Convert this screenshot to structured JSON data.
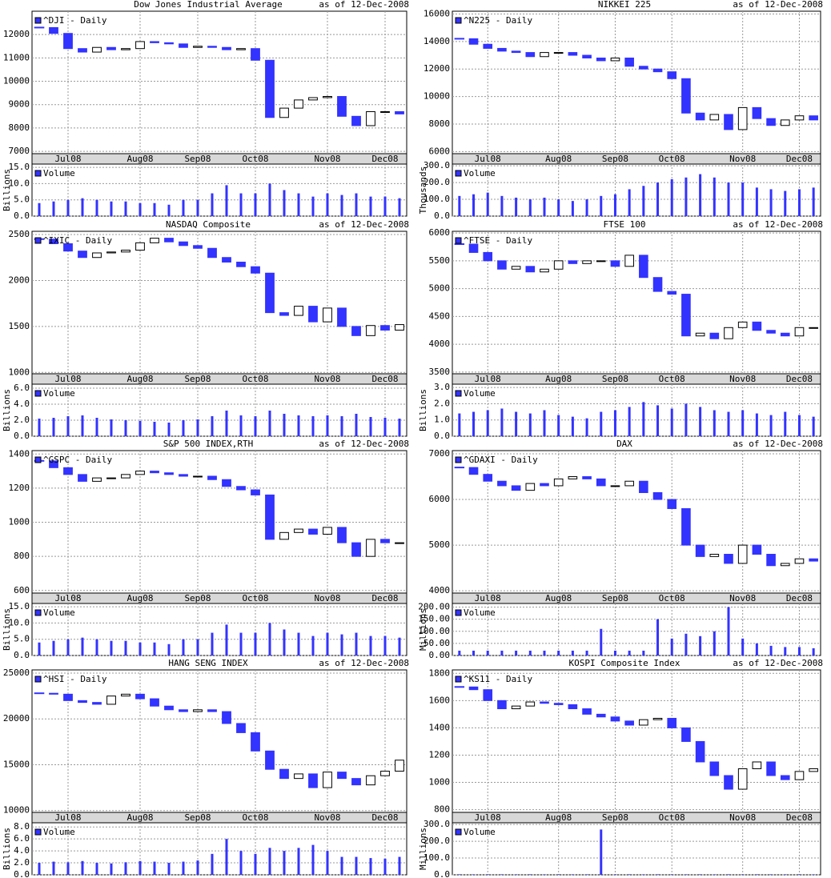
{
  "chart_data": [
    {
      "type": "candlestick",
      "title": "Dow Jones Industrial Average",
      "subtitle": "as of 12-Dec-2008",
      "categories": [
        null,
        null,
        "Jul08",
        null,
        null,
        null,
        null,
        "Aug08",
        null,
        null,
        null,
        "Sep08",
        null,
        null,
        null,
        "Oct08",
        null,
        null,
        null,
        null,
        "Nov08",
        null,
        null,
        null,
        "Dec08",
        null
      ],
      "series": [
        {
          "name": "^DJI - Daily",
          "color": "#3333ff",
          "values": [
            12300,
            12050,
            11400,
            11250,
            11450,
            11350,
            11400,
            11700,
            11650,
            11600,
            11450,
            11500,
            11450,
            11350,
            11400,
            10900,
            8450,
            8850,
            9200,
            9300,
            9350,
            8500,
            8100,
            8700,
            8700,
            8600
          ]
        }
      ],
      "ylim": [
        6900,
        13000
      ],
      "yticks": [
        7000,
        8000,
        9000,
        10000,
        11000,
        12000
      ],
      "grid": true,
      "volume": {
        "name": "Volume",
        "y_label": "Billions",
        "color": "#3333ff",
        "values": [
          4,
          4.5,
          5,
          5.5,
          5,
          4.5,
          4.5,
          4,
          4,
          3.5,
          5,
          5,
          7,
          9.5,
          7,
          7,
          10,
          8,
          7,
          6,
          7,
          6.5,
          7,
          6,
          6,
          5.5
        ],
        "ylim": [
          0,
          16
        ],
        "yticks": [
          {
            "value": 0,
            "label": "0.0"
          },
          {
            "value": 5,
            "label": "5.0"
          },
          {
            "value": 10,
            "label": "10.0"
          },
          {
            "value": 15,
            "label": "15.0"
          }
        ]
      }
    },
    {
      "type": "candlestick",
      "title": "NIKKEI 225",
      "subtitle": "as of 12-Dec-2008",
      "categories": [
        null,
        null,
        "Jul08",
        null,
        null,
        null,
        null,
        "Aug08",
        null,
        null,
        null,
        "Sep08",
        null,
        null,
        null,
        "Oct08",
        null,
        null,
        null,
        null,
        "Nov08",
        null,
        null,
        null,
        "Dec08",
        null
      ],
      "series": [
        {
          "name": "^N225 - Daily",
          "color": "#3333ff",
          "values": [
            14200,
            13800,
            13500,
            13300,
            13200,
            12900,
            13200,
            13200,
            13000,
            12800,
            12600,
            12800,
            12200,
            12000,
            11800,
            11300,
            8800,
            8300,
            8700,
            7600,
            9200,
            8400,
            7900,
            8300,
            8600,
            8300
          ]
        }
      ],
      "ylim": [
        5850,
        16200
      ],
      "yticks": [
        6000,
        8000,
        10000,
        12000,
        14000,
        16000
      ],
      "grid": true,
      "volume": {
        "name": "Volume",
        "y_label": "Thousands",
        "color": "#3333ff",
        "values": [
          120,
          130,
          140,
          120,
          110,
          100,
          110,
          100,
          90,
          100,
          120,
          130,
          160,
          180,
          200,
          220,
          230,
          250,
          230,
          200,
          200,
          170,
          160,
          150,
          160,
          170
        ],
        "ylim": [
          0,
          310
        ],
        "yticks": [
          {
            "value": 0,
            "label": "0.0"
          },
          {
            "value": 100,
            "label": "100.0"
          },
          {
            "value": 200,
            "label": "200.0"
          },
          {
            "value": 300,
            "label": "300.0"
          }
        ]
      }
    },
    {
      "type": "candlestick",
      "title": "NASDAQ Composite",
      "subtitle": "as of 12-Dec-2008",
      "categories": [
        null,
        null,
        "Jul08",
        null,
        null,
        null,
        null,
        "Aug08",
        null,
        null,
        null,
        "Sep08",
        null,
        null,
        null,
        "Oct08",
        null,
        null,
        null,
        null,
        "Nov08",
        null,
        null,
        null,
        "Dec08",
        null
      ],
      "series": [
        {
          "name": "^IXIC - Daily",
          "color": "#3333ff",
          "values": [
            2450,
            2400,
            2320,
            2250,
            2300,
            2310,
            2330,
            2410,
            2460,
            2420,
            2380,
            2350,
            2250,
            2200,
            2150,
            2080,
            1650,
            1620,
            1720,
            1550,
            1700,
            1500,
            1400,
            1510,
            1460,
            1520
          ]
        }
      ],
      "ylim": [
        985,
        2535
      ],
      "yticks": [
        1000,
        1500,
        2000,
        2500
      ],
      "grid": true,
      "volume": {
        "name": "Volume",
        "y_label": "Billions",
        "color": "#3333ff",
        "values": [
          2.2,
          2.3,
          2.5,
          2.6,
          2.3,
          2.1,
          2.0,
          1.9,
          1.8,
          1.7,
          2.0,
          2.1,
          2.5,
          3.2,
          2.6,
          2.5,
          3.2,
          2.8,
          2.6,
          2.5,
          2.6,
          2.5,
          2.8,
          2.4,
          2.3,
          2.2
        ],
        "ylim": [
          0,
          6.5
        ],
        "yticks": [
          {
            "value": 0,
            "label": "0.0"
          },
          {
            "value": 2,
            "label": "2.0"
          },
          {
            "value": 4,
            "label": "4.0"
          },
          {
            "value": 6,
            "label": "6.0"
          }
        ]
      }
    },
    {
      "type": "candlestick",
      "title": "FTSE 100",
      "subtitle": "as of 12-Dec-2008",
      "categories": [
        null,
        null,
        "Jul08",
        null,
        null,
        null,
        null,
        "Aug08",
        null,
        null,
        null,
        "Sep08",
        null,
        null,
        null,
        "Oct08",
        null,
        null,
        null,
        null,
        "Nov08",
        null,
        null,
        null,
        "Dec08",
        null
      ],
      "series": [
        {
          "name": "^FTSE - Daily",
          "color": "#3333ff",
          "values": [
            5800,
            5650,
            5500,
            5350,
            5400,
            5300,
            5350,
            5500,
            5450,
            5500,
            5500,
            5400,
            5600,
            5200,
            4950,
            4900,
            4150,
            4200,
            4100,
            4300,
            4400,
            4250,
            4200,
            4150,
            4300,
            4300
          ]
        }
      ],
      "ylim": [
        3470,
        6030
      ],
      "yticks": [
        3500,
        4000,
        4500,
        5000,
        5500,
        6000
      ],
      "grid": true,
      "volume": {
        "name": "Volume",
        "y_label": "Billions",
        "color": "#3333ff",
        "values": [
          1.4,
          1.5,
          1.6,
          1.7,
          1.5,
          1.4,
          1.6,
          1.3,
          1.2,
          1.1,
          1.5,
          1.6,
          1.8,
          2.1,
          1.9,
          1.7,
          2.0,
          1.8,
          1.6,
          1.5,
          1.6,
          1.4,
          1.3,
          1.5,
          1.3,
          1.2
        ],
        "ylim": [
          0,
          3.2
        ],
        "yticks": [
          {
            "value": 0,
            "label": "0.0"
          },
          {
            "value": 1,
            "label": "1.0"
          },
          {
            "value": 2,
            "label": "2.0"
          },
          {
            "value": 3,
            "label": "3.0"
          }
        ]
      }
    },
    {
      "type": "candlestick",
      "title": "S&P 500 INDEX,RTH",
      "subtitle": "as of 12-Dec-2008",
      "categories": [
        null,
        null,
        "Jul08",
        null,
        null,
        null,
        null,
        "Aug08",
        null,
        null,
        null,
        "Sep08",
        null,
        null,
        null,
        "Oct08",
        null,
        null,
        null,
        null,
        "Nov08",
        null,
        null,
        null,
        "Dec08",
        null
      ],
      "series": [
        {
          "name": "^GSPC - Daily",
          "color": "#3333ff",
          "values": [
            1360,
            1320,
            1280,
            1240,
            1260,
            1260,
            1280,
            1300,
            1290,
            1280,
            1270,
            1270,
            1250,
            1210,
            1190,
            1160,
            900,
            940,
            960,
            930,
            970,
            880,
            800,
            900,
            880,
            880
          ]
        }
      ],
      "ylim": [
        585,
        1420
      ],
      "yticks": [
        600,
        800,
        1000,
        1200,
        1400
      ],
      "grid": true,
      "volume": {
        "name": "Volume",
        "y_label": "Billions",
        "color": "#3333ff",
        "values": [
          4,
          4.5,
          5,
          5.5,
          5,
          4.5,
          4.5,
          4,
          4,
          3.5,
          5,
          5,
          7,
          9.5,
          7,
          7,
          10,
          8,
          7,
          6,
          7,
          6.5,
          7,
          6,
          6,
          5.5
        ],
        "ylim": [
          0,
          16
        ],
        "yticks": [
          {
            "value": 0,
            "label": "0.0"
          },
          {
            "value": 5,
            "label": "5.0"
          },
          {
            "value": 10,
            "label": "10.0"
          },
          {
            "value": 15,
            "label": "15.0"
          }
        ]
      }
    },
    {
      "type": "candlestick",
      "title": "DAX",
      "subtitle": "as of 12-Dec-2008",
      "categories": [
        null,
        null,
        "Jul08",
        null,
        null,
        null,
        null,
        "Aug08",
        null,
        null,
        null,
        "Sep08",
        null,
        null,
        null,
        "Oct08",
        null,
        null,
        null,
        null,
        "Nov08",
        null,
        null,
        null,
        "Dec08",
        null
      ],
      "series": [
        {
          "name": "^GDAXI - Daily",
          "color": "#3333ff",
          "values": [
            6700,
            6550,
            6400,
            6300,
            6200,
            6350,
            6300,
            6450,
            6500,
            6450,
            6300,
            6300,
            6400,
            6150,
            6000,
            5800,
            5000,
            4750,
            4800,
            4600,
            5000,
            4800,
            4550,
            4600,
            4700,
            4650
          ]
        }
      ],
      "ylim": [
        3950,
        7070
      ],
      "yticks": [
        4000,
        5000,
        6000,
        7000
      ],
      "grid": true,
      "volume": {
        "name": "Volume",
        "y_label": "Millions",
        "color": "#3333ff",
        "values": [
          20,
          20,
          20,
          20,
          20,
          20,
          20,
          20,
          20,
          20,
          110,
          20,
          20,
          20,
          150,
          70,
          90,
          80,
          100,
          200,
          70,
          50,
          40,
          35,
          35,
          30
        ],
        "ylim": [
          0,
          215
        ],
        "yticks": [
          {
            "value": 0,
            "label": "0.00"
          },
          {
            "value": 50,
            "label": "50.00"
          },
          {
            "value": 100,
            "label": "100.00"
          },
          {
            "value": 150,
            "label": "150.00"
          },
          {
            "value": 200,
            "label": "200.00"
          }
        ]
      }
    },
    {
      "type": "candlestick",
      "title": "HANG SENG INDEX",
      "subtitle": "as of 12-Dec-2008",
      "categories": [
        null,
        null,
        "Jul08",
        null,
        null,
        null,
        null,
        "Aug08",
        null,
        null,
        null,
        "Sep08",
        null,
        null,
        null,
        "Oct08",
        null,
        null,
        null,
        null,
        "Nov08",
        null,
        null,
        null,
        "Dec08",
        null
      ],
      "series": [
        {
          "name": "^HSI - Daily",
          "color": "#3333ff",
          "values": [
            22800,
            22700,
            22000,
            21800,
            21600,
            22500,
            22700,
            22200,
            21400,
            21000,
            20800,
            21000,
            20800,
            19500,
            18500,
            16500,
            14500,
            13500,
            14000,
            12500,
            14200,
            13500,
            12800,
            13800,
            14300,
            15500
          ]
        }
      ],
      "ylim": [
        9800,
        25350
      ],
      "yticks": [
        10000,
        15000,
        20000,
        25000
      ],
      "grid": true,
      "volume": {
        "name": "Volume",
        "y_label": "Billions",
        "color": "#3333ff",
        "values": [
          2,
          2.2,
          2.1,
          2.3,
          2.0,
          1.9,
          2.1,
          2.3,
          2.2,
          2.0,
          2.2,
          2.4,
          3.5,
          6,
          4,
          3.5,
          4.5,
          4,
          4.5,
          5,
          4,
          3,
          3,
          2.8,
          2.7,
          3
        ],
        "ylim": [
          0,
          8.7
        ],
        "yticks": [
          {
            "value": 0,
            "label": "0.0"
          },
          {
            "value": 2,
            "label": "2.0"
          },
          {
            "value": 4,
            "label": "4.0"
          },
          {
            "value": 6,
            "label": "6.0"
          },
          {
            "value": 8,
            "label": "8.0"
          }
        ]
      }
    },
    {
      "type": "candlestick",
      "title": "KOSPI Composite Index",
      "subtitle": "as of 12-Dec-2008",
      "categories": [
        null,
        null,
        "Jul08",
        null,
        null,
        null,
        null,
        "Aug08",
        null,
        null,
        null,
        "Sep08",
        null,
        null,
        null,
        "Oct08",
        null,
        null,
        null,
        null,
        "Nov08",
        null,
        null,
        null,
        "Dec08",
        null
      ],
      "series": [
        {
          "name": "^KS11 - Daily",
          "color": "#3333ff",
          "values": [
            1700,
            1680,
            1600,
            1540,
            1560,
            1590,
            1580,
            1570,
            1540,
            1500,
            1480,
            1450,
            1420,
            1460,
            1470,
            1400,
            1300,
            1150,
            1050,
            950,
            1100,
            1150,
            1050,
            1020,
            1080,
            1100
          ]
        }
      ],
      "ylim": [
        780,
        1825
      ],
      "yticks": [
        800,
        1000,
        1200,
        1400,
        1600,
        1800
      ],
      "grid": true,
      "volume": {
        "name": "Volume",
        "y_label": "Millions",
        "color": "#3333ff",
        "values": [
          3,
          3,
          3,
          3,
          3,
          3,
          3,
          3,
          3,
          3,
          270,
          3,
          3,
          3,
          3,
          3,
          3,
          3,
          3,
          3,
          3,
          3,
          3,
          3,
          3,
          3
        ],
        "ylim": [
          0,
          310
        ],
        "yticks": [
          {
            "value": 0,
            "label": "0.0"
          },
          {
            "value": 100,
            "label": "100.0"
          },
          {
            "value": 200,
            "label": "200.0"
          },
          {
            "value": 300,
            "label": "300.0"
          }
        ]
      }
    }
  ]
}
